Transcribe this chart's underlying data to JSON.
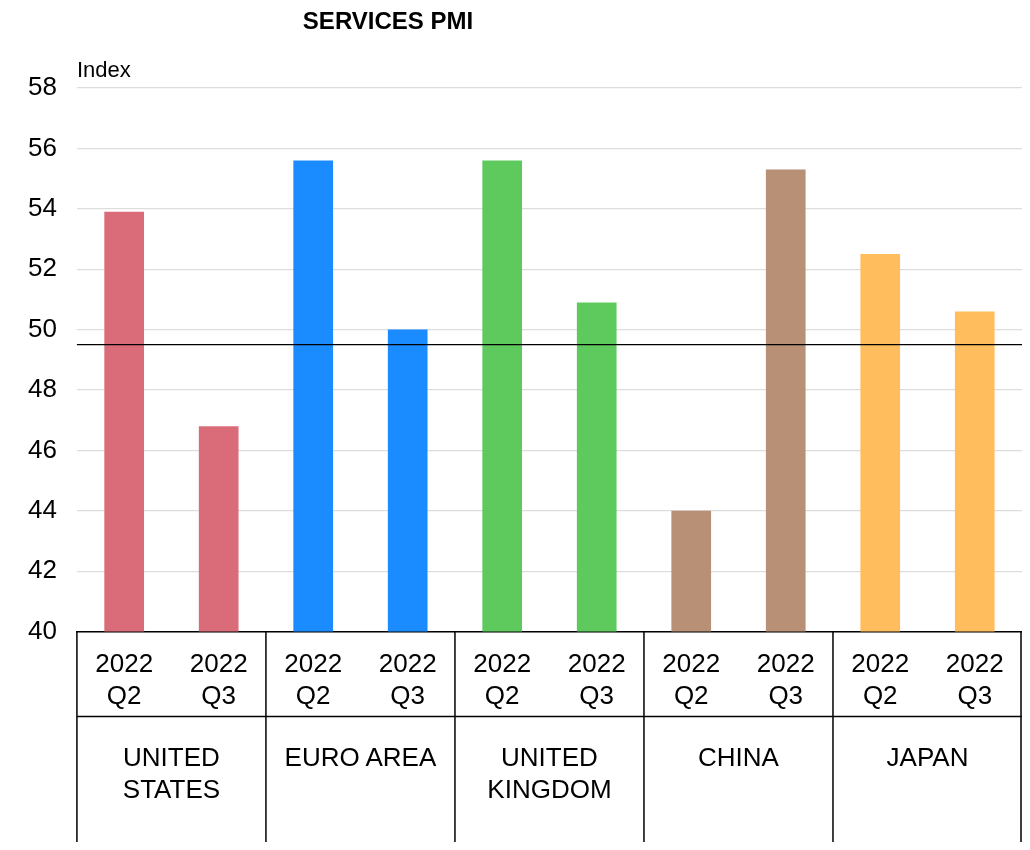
{
  "chart_data": {
    "type": "bar",
    "title": "SERVICES PMI",
    "ylabel": "Index",
    "stacked": true,
    "categories": [
      "2022 Q2",
      "2022 Q3",
      "2022 Q2",
      "2022 Q3",
      "2022 Q2",
      "2022 Q3",
      "2022 Q2",
      "2022 Q3",
      "2022 Q2",
      "2022 Q3"
    ],
    "series": [
      {
        "name": "UNITED STATES",
        "color": "#da6b78",
        "values": [
          53.9,
          46.8,
          null,
          null,
          null,
          null,
          null,
          null,
          null,
          null
        ]
      },
      {
        "name": "EURO AREA",
        "color": "#1a8cff",
        "values": [
          null,
          null,
          55.6,
          50.0,
          null,
          null,
          null,
          null,
          null,
          null
        ]
      },
      {
        "name": "UNITED KINGDOM",
        "color": "#5ec95c",
        "values": [
          null,
          null,
          null,
          null,
          55.6,
          50.9,
          null,
          null,
          null,
          null
        ]
      },
      {
        "name": "CHINA",
        "color": "#b89076",
        "values": [
          null,
          null,
          null,
          null,
          null,
          null,
          44.0,
          55.3,
          null,
          null
        ]
      },
      {
        "name": "JAPAN",
        "color": "#ffbd5e",
        "values": [
          null,
          null,
          null,
          null,
          null,
          null,
          null,
          null,
          52.5,
          50.6
        ]
      }
    ],
    "ylim": [
      40,
      58
    ],
    "yticks": [
      40,
      42,
      44,
      46,
      48,
      50,
      52,
      54,
      56,
      58
    ],
    "grid": "y",
    "legend": false,
    "ref_lines": [
      {
        "axis": "y",
        "value": 49.5,
        "color": "#000000"
      }
    ]
  }
}
